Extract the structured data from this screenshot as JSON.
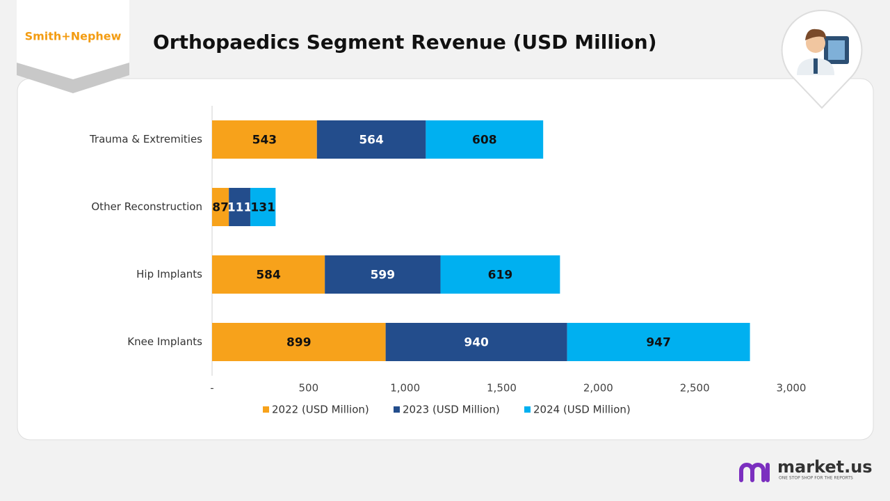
{
  "header_logo": "Smith+Nephew",
  "footer_logo": {
    "name": "market.us",
    "tagline": "ONE STOP SHOP FOR THE REPORTS"
  },
  "chart_data": {
    "type": "bar",
    "orientation": "horizontal",
    "stacked": true,
    "title": "Orthopaedics Segment Revenue (USD Million)",
    "categories": [
      "Trauma & Extremities",
      "Other Reconstruction",
      "Hip Implants",
      "Knee Implants"
    ],
    "series": [
      {
        "name": "2022 (USD Million)",
        "color": "#f7a21b",
        "values": [
          543,
          87,
          584,
          899
        ]
      },
      {
        "name": "2023 (USD Million)",
        "color": "#234d8c",
        "values": [
          564,
          111,
          599,
          940
        ]
      },
      {
        "name": "2024 (USD Million)",
        "color": "#00b0f0",
        "values": [
          608,
          131,
          619,
          947
        ]
      }
    ],
    "xlim": [
      0,
      3000
    ],
    "xticks": [
      {
        "value": 0,
        "label": "-"
      },
      500,
      {
        "value": 1000,
        "label": "1,000"
      },
      {
        "value": 1500,
        "label": "1,500"
      },
      {
        "value": 2000,
        "label": "2,000"
      },
      {
        "value": 2500,
        "label": "2,500"
      },
      {
        "value": 3000,
        "label": "3,000"
      }
    ],
    "grid": false,
    "legend": "bottom"
  }
}
